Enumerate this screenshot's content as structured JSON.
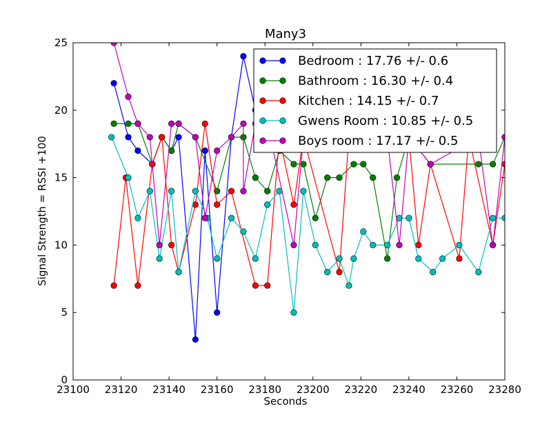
{
  "chart_data": {
    "type": "line",
    "title": "Many3",
    "xlabel": "Seconds",
    "ylabel": "Signal Strength  = RSSI +100",
    "xlim": [
      23100,
      23280
    ],
    "ylim": [
      0,
      25
    ],
    "xticks": [
      23100,
      23120,
      23140,
      23160,
      23180,
      23200,
      23220,
      23240,
      23260,
      23280
    ],
    "yticks": [
      0,
      5,
      10,
      15,
      20,
      25
    ],
    "grid": false,
    "legend_position": "top-right",
    "series": [
      {
        "name": "Bedroom : 17.76 +/- 0.6",
        "color": "#0000ff",
        "points": [
          [
            23117,
            22
          ],
          [
            23123,
            18
          ],
          [
            23127,
            17
          ],
          [
            23133,
            16
          ],
          [
            23137,
            18
          ],
          [
            23141,
            17
          ],
          [
            23144,
            18
          ],
          [
            23151,
            3
          ],
          [
            23155,
            17
          ],
          [
            23160,
            5
          ],
          [
            23166,
            18
          ],
          [
            23171,
            24
          ],
          [
            23176,
            20
          ]
        ]
      },
      {
        "name": "Bathroom : 16.30 +/- 0.4",
        "color": "#008000",
        "points": [
          [
            23117,
            19
          ],
          [
            23123,
            19
          ],
          [
            23127,
            19
          ],
          [
            23133,
            16
          ],
          [
            23137,
            18
          ],
          [
            23141,
            17
          ],
          [
            23144,
            19
          ],
          [
            23151,
            18
          ],
          [
            23160,
            14
          ],
          [
            23166,
            18
          ],
          [
            23171,
            18
          ],
          [
            23176,
            15
          ],
          [
            23181,
            14
          ],
          [
            23186,
            17
          ],
          [
            23192,
            16
          ],
          [
            23196,
            16
          ],
          [
            23201,
            12
          ],
          [
            23206,
            15
          ],
          [
            23211,
            15
          ],
          [
            23217,
            16
          ],
          [
            23221,
            16
          ],
          [
            23225,
            15
          ],
          [
            23231,
            9
          ],
          [
            23235,
            15
          ],
          [
            23240,
            18
          ],
          [
            23249,
            16
          ],
          [
            23269,
            16
          ],
          [
            23275,
            16
          ],
          [
            23280,
            18
          ]
        ]
      },
      {
        "name": "Kitchen : 14.15 +/- 0.7",
        "color": "#ff0000",
        "points": [
          [
            23117,
            7
          ],
          [
            23122,
            15
          ],
          [
            23127,
            7
          ],
          [
            23133,
            16
          ],
          [
            23137,
            18
          ],
          [
            23141,
            10
          ],
          [
            23144,
            8
          ],
          [
            23151,
            13
          ],
          [
            23155,
            19
          ],
          [
            23160,
            13
          ],
          [
            23166,
            14
          ],
          [
            23176,
            7
          ],
          [
            23181,
            7
          ],
          [
            23186,
            18
          ],
          [
            23192,
            13
          ],
          [
            23196,
            18
          ],
          [
            23211,
            8
          ],
          [
            23215,
            18
          ],
          [
            23240,
            18
          ],
          [
            23244,
            10
          ],
          [
            23249,
            16
          ],
          [
            23261,
            9
          ],
          [
            23265,
            18
          ],
          [
            23275,
            10
          ],
          [
            23280,
            16
          ]
        ]
      },
      {
        "name": "Gwens Room : 10.85 +/- 0.5",
        "color": "#00bfbf",
        "points": [
          [
            23116,
            18
          ],
          [
            23123,
            15
          ],
          [
            23127,
            12
          ],
          [
            23132,
            14
          ],
          [
            23136,
            9
          ],
          [
            23141,
            14
          ],
          [
            23144,
            8
          ],
          [
            23151,
            14
          ],
          [
            23156,
            12
          ],
          [
            23160,
            9
          ],
          [
            23166,
            12
          ],
          [
            23171,
            11
          ],
          [
            23176,
            9
          ],
          [
            23181,
            13
          ],
          [
            23186,
            14
          ],
          [
            23192,
            5
          ],
          [
            23196,
            14
          ],
          [
            23201,
            10
          ],
          [
            23206,
            8
          ],
          [
            23211,
            9
          ],
          [
            23215,
            7
          ],
          [
            23217,
            9
          ],
          [
            23221,
            11
          ],
          [
            23225,
            10
          ],
          [
            23231,
            10
          ],
          [
            23236,
            12
          ],
          [
            23240,
            12
          ],
          [
            23244,
            9
          ],
          [
            23250,
            8
          ],
          [
            23254,
            9
          ],
          [
            23261,
            10
          ],
          [
            23269,
            8
          ],
          [
            23275,
            12
          ],
          [
            23280,
            12
          ]
        ]
      },
      {
        "name": "Boys room : 17.17 +/- 0.5",
        "color": "#bf00bf",
        "points": [
          [
            23117,
            25
          ],
          [
            23123,
            21
          ],
          [
            23127,
            19
          ],
          [
            23132,
            18
          ],
          [
            23136,
            10
          ],
          [
            23141,
            19
          ],
          [
            23144,
            19
          ],
          [
            23151,
            18
          ],
          [
            23155,
            12
          ],
          [
            23160,
            17
          ],
          [
            23166,
            18
          ],
          [
            23171,
            19
          ],
          [
            23171,
            14
          ],
          [
            23176,
            19
          ],
          [
            23181,
            19
          ],
          [
            23192,
            10
          ],
          [
            23196,
            18
          ],
          [
            23231,
            18
          ],
          [
            23236,
            10
          ],
          [
            23240,
            18
          ],
          [
            23249,
            16
          ],
          [
            23269,
            18
          ],
          [
            23275,
            10
          ],
          [
            23280,
            18
          ]
        ]
      }
    ]
  }
}
